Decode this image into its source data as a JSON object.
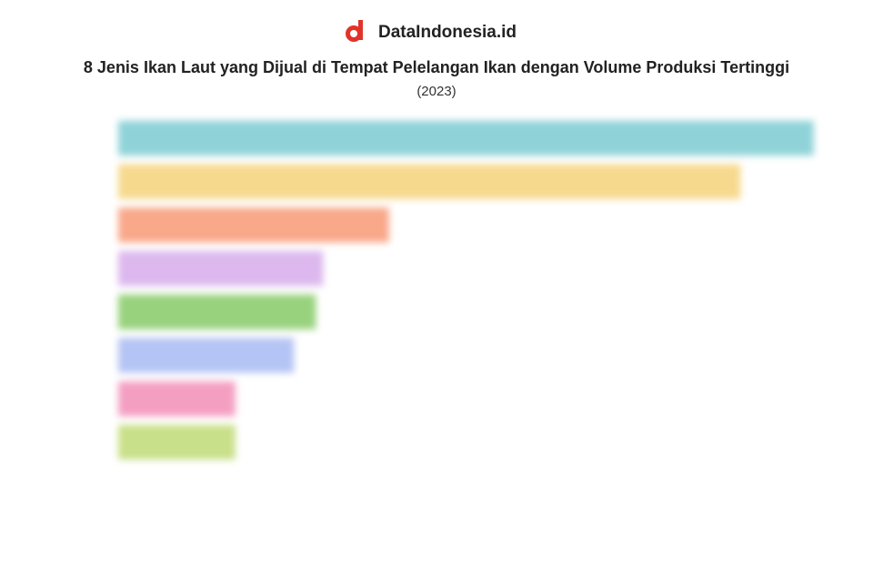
{
  "brand": "DataIndonesia.id",
  "chart_data": {
    "type": "bar",
    "orientation": "horizontal",
    "title": "8 Jenis Ikan Laut yang Dijual di Tempat Pelelangan Ikan dengan Volume Produksi Tertinggi",
    "subtitle": "(2023)",
    "categories": [
      null,
      null,
      null,
      null,
      null,
      null,
      null,
      null
    ],
    "values": [
      95,
      85,
      37,
      28,
      27,
      24,
      16,
      16
    ],
    "colors": [
      "#8fd3d8",
      "#f7d98e",
      "#f9a88a",
      "#dcb8ee",
      "#98d27d",
      "#b4c4f4",
      "#f49fc2",
      "#c9e08a"
    ],
    "xlim": [
      0,
      100
    ]
  }
}
